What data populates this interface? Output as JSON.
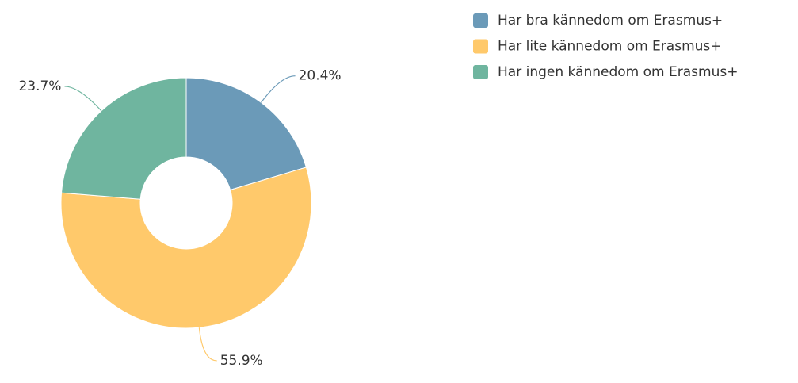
{
  "chart_data": {
    "type": "donut",
    "categories": [
      "Har bra kännedom om Erasmus+",
      "Har lite kännedom om Erasmus+",
      "Har ingen kännedom om Erasmus+"
    ],
    "values": [
      20.4,
      55.9,
      23.7
    ],
    "value_labels": [
      "20.4%",
      "55.9%",
      "23.7%"
    ],
    "colors": [
      "#6b9ab8",
      "#ffc96b",
      "#6fb59f"
    ],
    "legend": "top-right"
  }
}
